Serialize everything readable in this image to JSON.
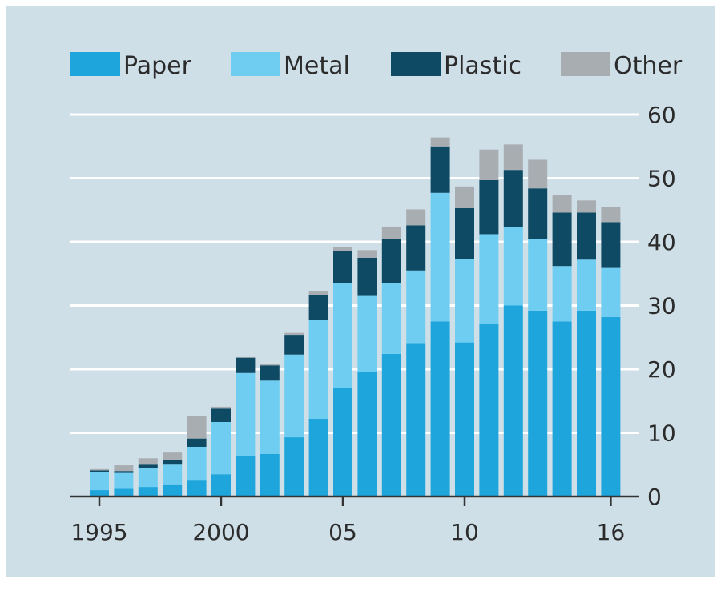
{
  "colors": {
    "background": "#cfdfe8",
    "gridline": "#ffffff",
    "axis": "#333333",
    "text": "#2b2b2b"
  },
  "chart_data": {
    "type": "bar",
    "stacked": true,
    "legend_position": "top",
    "grid": true,
    "ylim": [
      0,
      60
    ],
    "y_ticks": [
      0,
      10,
      20,
      30,
      40,
      50,
      60
    ],
    "y_axis_side": "right",
    "x_tick_labels": [
      {
        "year": 1995,
        "label": "1995"
      },
      {
        "year": 2000,
        "label": "2000"
      },
      {
        "year": 2005,
        "label": "05"
      },
      {
        "year": 2010,
        "label": "10"
      },
      {
        "year": 2016,
        "label": "16"
      }
    ],
    "categories": [
      1995,
      1996,
      1997,
      1998,
      1999,
      2000,
      2001,
      2002,
      2003,
      2004,
      2005,
      2006,
      2007,
      2008,
      2009,
      2010,
      2011,
      2012,
      2013,
      2014,
      2015,
      2016
    ],
    "series": [
      {
        "name": "Paper",
        "color": "#1ea6dc",
        "values": [
          1.0,
          1.2,
          1.5,
          1.8,
          2.5,
          3.5,
          6.3,
          6.7,
          9.3,
          12.2,
          17.0,
          19.5,
          22.4,
          24.1,
          27.5,
          24.2,
          27.2,
          30.0,
          29.2,
          27.5,
          29.2,
          28.2
        ]
      },
      {
        "name": "Metal",
        "color": "#6fcdf2",
        "values": [
          2.8,
          2.5,
          3.0,
          3.2,
          5.3,
          8.2,
          13.1,
          11.5,
          13.0,
          15.5,
          16.5,
          12.0,
          11.1,
          11.4,
          20.2,
          13.1,
          14.0,
          12.3,
          11.2,
          8.7,
          8.0,
          7.7
        ]
      },
      {
        "name": "Plastic",
        "color": "#0e4a64",
        "values": [
          0.3,
          0.3,
          0.5,
          0.7,
          1.3,
          2.1,
          2.4,
          2.4,
          3.1,
          4.0,
          5.0,
          6.0,
          6.9,
          7.1,
          7.3,
          8.0,
          8.5,
          9.0,
          8.0,
          8.4,
          7.4,
          7.2
        ]
      },
      {
        "name": "Other",
        "color": "#a8adb2",
        "values": [
          0.2,
          0.9,
          1.0,
          1.2,
          3.6,
          0.3,
          0.1,
          0.2,
          0.3,
          0.5,
          0.7,
          1.2,
          2.0,
          2.5,
          1.4,
          3.4,
          4.8,
          4.0,
          4.5,
          2.8,
          1.9,
          2.4
        ]
      }
    ]
  }
}
